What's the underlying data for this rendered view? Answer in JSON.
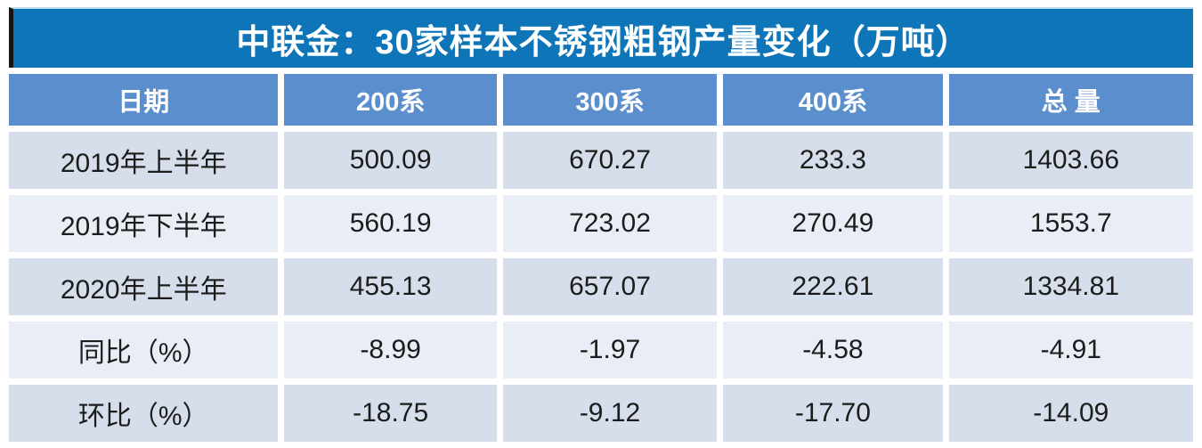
{
  "title": "中联金：30家样本不锈钢粗钢产量变化（万吨）",
  "colors": {
    "title_bg": "#0e76b8",
    "title_top_edge": "#b9dff0",
    "header_bg": "#5a8ecd",
    "row_odd_bg": "#d6deeb",
    "row_even_bg": "#e9edf5",
    "cell_text": "#1c1c1c",
    "black_bar": "#151515"
  },
  "chart_data": {
    "type": "table",
    "title": "中联金：30家样本不锈钢粗钢产量变化（万吨）",
    "columns": [
      "日期",
      "200系",
      "300系",
      "400系",
      "总 量"
    ],
    "rows": [
      [
        "2019年上半年",
        "500.09",
        "670.27",
        "233.3",
        "1403.66"
      ],
      [
        "2019年下半年",
        "560.19",
        "723.02",
        "270.49",
        "1553.7"
      ],
      [
        "2020年上半年",
        "455.13",
        "657.07",
        "222.61",
        "1334.81"
      ],
      [
        "同比（%）",
        "-8.99",
        "-1.97",
        "-4.58",
        "-4.91"
      ],
      [
        "环比（%）",
        "-18.75",
        "-9.12",
        "-17.70",
        "-14.09"
      ]
    ],
    "units": "万吨",
    "notes_layout": "alternating-row-shading, header-row-blue, title-band-dark-blue"
  }
}
